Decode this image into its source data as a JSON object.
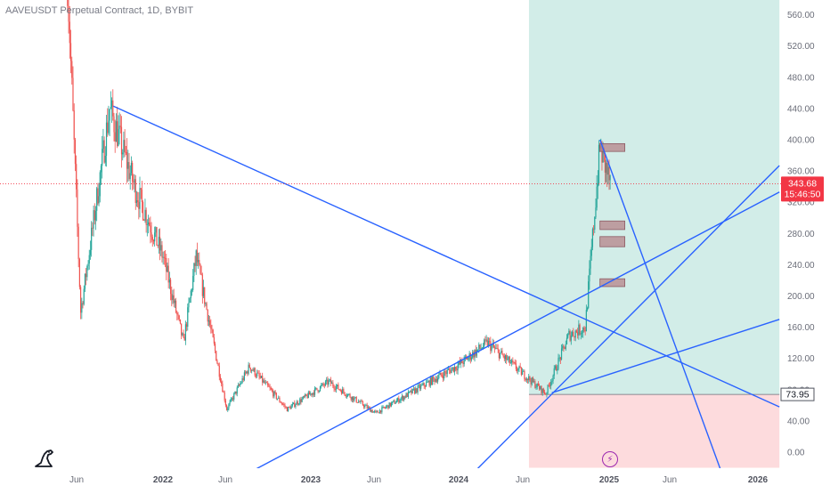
{
  "header": {
    "title": "AAVEUSDT Perpetual Contract, 1D, BYBIT"
  },
  "price_axis": {
    "ticks": [
      "560.00",
      "520.00",
      "480.00",
      "440.00",
      "400.00",
      "360.00",
      "320.00",
      "280.00",
      "240.00",
      "200.00",
      "160.00",
      "120.00",
      "80.00",
      "40.00",
      "0.00"
    ]
  },
  "time_axis": {
    "ticks": [
      {
        "label": "Jun",
        "year": false
      },
      {
        "label": "2022",
        "year": true
      },
      {
        "label": "Jun",
        "year": false
      },
      {
        "label": "2023",
        "year": true
      },
      {
        "label": "Jun",
        "year": false
      },
      {
        "label": "2024",
        "year": true
      },
      {
        "label": "Jun",
        "year": false
      },
      {
        "label": "2025",
        "year": true
      },
      {
        "label": "Jun",
        "year": false
      },
      {
        "label": "2026",
        "year": true
      }
    ]
  },
  "last_price": {
    "value": "343.68",
    "countdown": "15:46:50",
    "color": "#f23645"
  },
  "stop_label": {
    "value": "73.95",
    "color": "#50535e"
  },
  "colors": {
    "up": "#26a69a",
    "down": "#ef5350",
    "trendline": "#2962ff",
    "profit_zone": "rgba(8,153,129,0.18)",
    "loss_zone": "rgba(242,54,69,0.18)",
    "box_fill": "#b5838a",
    "accent": "#9c27b0"
  },
  "icons": {
    "logo": "tradingview-dino-icon",
    "flash": "flash-icon"
  },
  "chart_data": {
    "type": "candlestick",
    "title": "AAVEUSDT Perpetual Contract, 1D, BYBIT",
    "ylim": [
      -20,
      580
    ],
    "x_range": [
      "2021-04",
      "2026-03"
    ],
    "last_price": 343.68,
    "key_points": [
      {
        "date": "2021-05-18",
        "price": 640
      },
      {
        "date": "2021-06-22",
        "price": 180
      },
      {
        "date": "2021-09-01",
        "price": 440
      },
      {
        "date": "2021-11-01",
        "price": 340
      },
      {
        "date": "2022-01-10",
        "price": 250
      },
      {
        "date": "2022-03-01",
        "price": 140
      },
      {
        "date": "2022-04-01",
        "price": 250
      },
      {
        "date": "2022-06-15",
        "price": 55
      },
      {
        "date": "2022-08-10",
        "price": 110
      },
      {
        "date": "2022-11-10",
        "price": 55
      },
      {
        "date": "2023-02-20",
        "price": 90
      },
      {
        "date": "2023-06-15",
        "price": 50
      },
      {
        "date": "2023-12-31",
        "price": 110
      },
      {
        "date": "2024-03-15",
        "price": 140
      },
      {
        "date": "2024-08-05",
        "price": 75
      },
      {
        "date": "2024-10-01",
        "price": 150
      },
      {
        "date": "2024-11-10",
        "price": 160
      },
      {
        "date": "2024-12-16",
        "price": 390
      },
      {
        "date": "2025-01-10",
        "price": 343.68
      }
    ],
    "position": {
      "entry": 73.95,
      "target": 580,
      "stop": -20,
      "start": "2024-06-25",
      "end": "2026-03-01"
    },
    "horizontal_boxes": [
      {
        "price_low": 385,
        "price_high": 395
      },
      {
        "price_low": 285,
        "price_high": 296
      },
      {
        "price_low": 263,
        "price_high": 276
      },
      {
        "price_low": 212,
        "price_high": 222
      }
    ],
    "trendlines": [
      {
        "from": {
          "date": "2021-09-10",
          "price": 443
        },
        "to": {
          "date": "2026-03-01",
          "price": 58
        }
      },
      {
        "from": {
          "date": "2022-06-20",
          "price": -40
        },
        "to": {
          "date": "2026-03-01",
          "price": 333
        }
      },
      {
        "from": {
          "date": "2024-01-15",
          "price": -40
        },
        "to": {
          "date": "2026-03-01",
          "price": 367
        }
      },
      {
        "from": {
          "date": "2024-08-20",
          "price": 76
        },
        "to": {
          "date": "2026-03-01",
          "price": 170
        }
      },
      {
        "from": {
          "date": "2024-12-16",
          "price": 400
        },
        "to": {
          "date": "2025-10-20",
          "price": -40
        }
      }
    ]
  }
}
